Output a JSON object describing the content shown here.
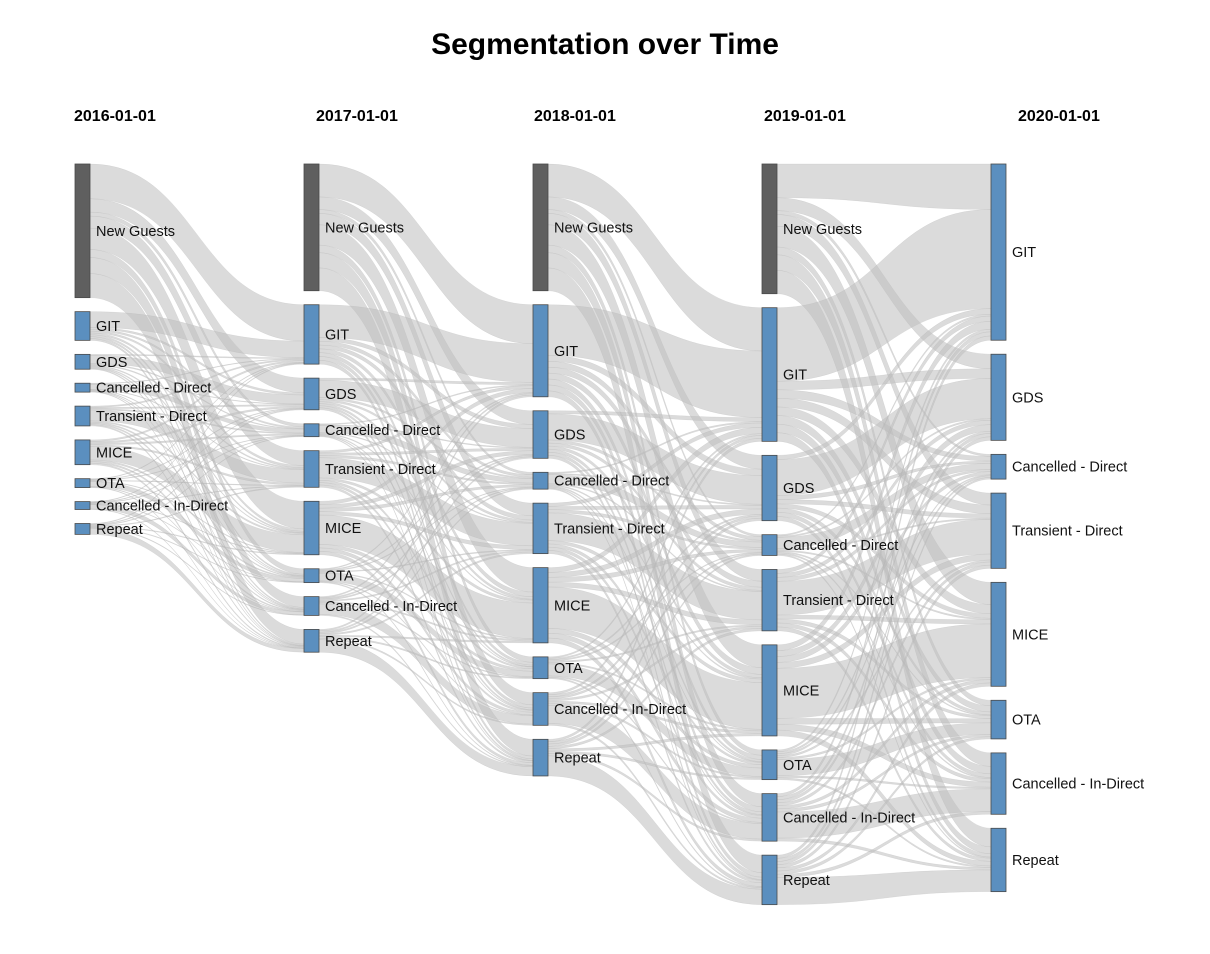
{
  "chart_data": {
    "type": "sankey",
    "title": "Segmentation over Time",
    "columns": [
      "2016-01-01",
      "2017-01-01",
      "2018-01-01",
      "2019-01-01",
      "2020-01-01"
    ],
    "nodes": [
      [
        {
          "name": "New Guests",
          "value": 135,
          "kind": "new"
        },
        {
          "name": "GIT",
          "value": 29
        },
        {
          "name": "GDS",
          "value": 15
        },
        {
          "name": "Cancelled - Direct",
          "value": 9
        },
        {
          "name": "Transient - Direct",
          "value": 20
        },
        {
          "name": "MICE",
          "value": 25
        },
        {
          "name": "OTA",
          "value": 9
        },
        {
          "name": "Cancelled - In-Direct",
          "value": 8
        },
        {
          "name": "Repeat",
          "value": 11
        }
      ],
      [
        {
          "name": "New Guests",
          "value": 128,
          "kind": "new"
        },
        {
          "name": "GIT",
          "value": 60
        },
        {
          "name": "GDS",
          "value": 32
        },
        {
          "name": "Cancelled - Direct",
          "value": 13
        },
        {
          "name": "Transient - Direct",
          "value": 37
        },
        {
          "name": "MICE",
          "value": 54
        },
        {
          "name": "OTA",
          "value": 14
        },
        {
          "name": "Cancelled - In-Direct",
          "value": 19
        },
        {
          "name": "Repeat",
          "value": 23
        }
      ],
      [
        {
          "name": "New Guests",
          "value": 128,
          "kind": "new"
        },
        {
          "name": "GIT",
          "value": 93
        },
        {
          "name": "GDS",
          "value": 48
        },
        {
          "name": "Cancelled - Direct",
          "value": 17
        },
        {
          "name": "Transient - Direct",
          "value": 51
        },
        {
          "name": "MICE",
          "value": 76
        },
        {
          "name": "OTA",
          "value": 22
        },
        {
          "name": "Cancelled - In-Direct",
          "value": 33
        },
        {
          "name": "Repeat",
          "value": 37
        }
      ],
      [
        {
          "name": "New Guests",
          "value": 131,
          "kind": "new"
        },
        {
          "name": "GIT",
          "value": 135
        },
        {
          "name": "GDS",
          "value": 66
        },
        {
          "name": "Cancelled - Direct",
          "value": 21
        },
        {
          "name": "Transient - Direct",
          "value": 62
        },
        {
          "name": "MICE",
          "value": 92
        },
        {
          "name": "OTA",
          "value": 30
        },
        {
          "name": "Cancelled - In-Direct",
          "value": 48
        },
        {
          "name": "Repeat",
          "value": 50
        }
      ],
      [
        {
          "name": "GIT",
          "value": 178
        },
        {
          "name": "GDS",
          "value": 87
        },
        {
          "name": "Cancelled - Direct",
          "value": 25
        },
        {
          "name": "Transient - Direct",
          "value": 76
        },
        {
          "name": "MICE",
          "value": 105
        },
        {
          "name": "OTA",
          "value": 39
        },
        {
          "name": "Cancelled - In-Direct",
          "value": 62
        },
        {
          "name": "Repeat",
          "value": 64
        }
      ]
    ],
    "colors": {
      "new_guests": "#5f5f5f",
      "segment": "#5b8fbf",
      "link": "#bdbdbd",
      "node_border": "#4a4a4a"
    }
  }
}
